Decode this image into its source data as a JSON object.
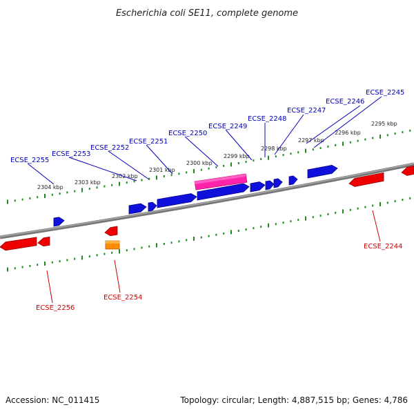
{
  "title": "Escherichia coli SE11, complete genome",
  "footer": {
    "accession": "Accession: NC_011415",
    "summary": "Topology: circular; Length: 4,887,515 bp; Genes: 4,786"
  },
  "colors": {
    "backbone": "#777777",
    "ruler": "#1f8a1f",
    "forward_gene": "#1010dd",
    "reverse_gene": "#ee0000",
    "rna_gene": "#ff22aa",
    "other_gene": "#ff8c00",
    "forward_label": "#0000bb",
    "reverse_label": "#cc0000"
  },
  "ruler_ticks": [
    "2295 kbp",
    "2296 kbp",
    "2297 kbp",
    "2298 kbp",
    "2299 kbp",
    "2300 kbp",
    "2301 kbp",
    "2302 kbp",
    "2303 kbp",
    "2304 kbp"
  ],
  "forward_labels": [
    "ECSE_2245",
    "ECSE_2246",
    "ECSE_2247",
    "ECSE_2248",
    "ECSE_2249",
    "ECSE_2250",
    "ECSE_2251",
    "ECSE_2252",
    "ECSE_2253",
    "ECSE_2255"
  ],
  "reverse_labels": [
    "ECSE_2244",
    "ECSE_2254",
    "ECSE_2256"
  ]
}
